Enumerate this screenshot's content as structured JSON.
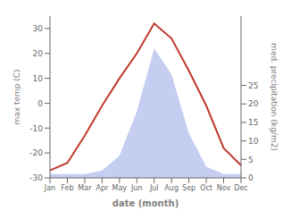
{
  "chart_data": {
    "type": "line",
    "categories": [
      "Jan",
      "Feb",
      "Mar",
      "Apr",
      "May",
      "Jun",
      "Jul",
      "Aug",
      "Sep",
      "Oct",
      "Nov",
      "Dec"
    ],
    "series": [
      {
        "type": "area",
        "axis": "y2",
        "color": "#c5cef0",
        "values": [
          1,
          1,
          1,
          2,
          6,
          18,
          35,
          28,
          12,
          3,
          1,
          1
        ]
      },
      {
        "type": "line",
        "color": "#c0392b",
        "values": [
          -27,
          -24,
          -13,
          -1,
          10,
          20,
          32,
          26,
          13,
          -1,
          -18,
          -25
        ]
      }
    ],
    "xlabel": "date (month)",
    "ylabel": "max temp (C)",
    "y2label": "med. precipitation (kg/m2)",
    "ylim": [
      -30,
      35
    ],
    "yticks": [
      -30,
      -20,
      -10,
      0,
      10,
      20,
      30
    ],
    "y2lim": [
      0,
      43.75
    ],
    "y2ticks": [
      0,
      5,
      10,
      15,
      20,
      25
    ],
    "grid": false
  }
}
